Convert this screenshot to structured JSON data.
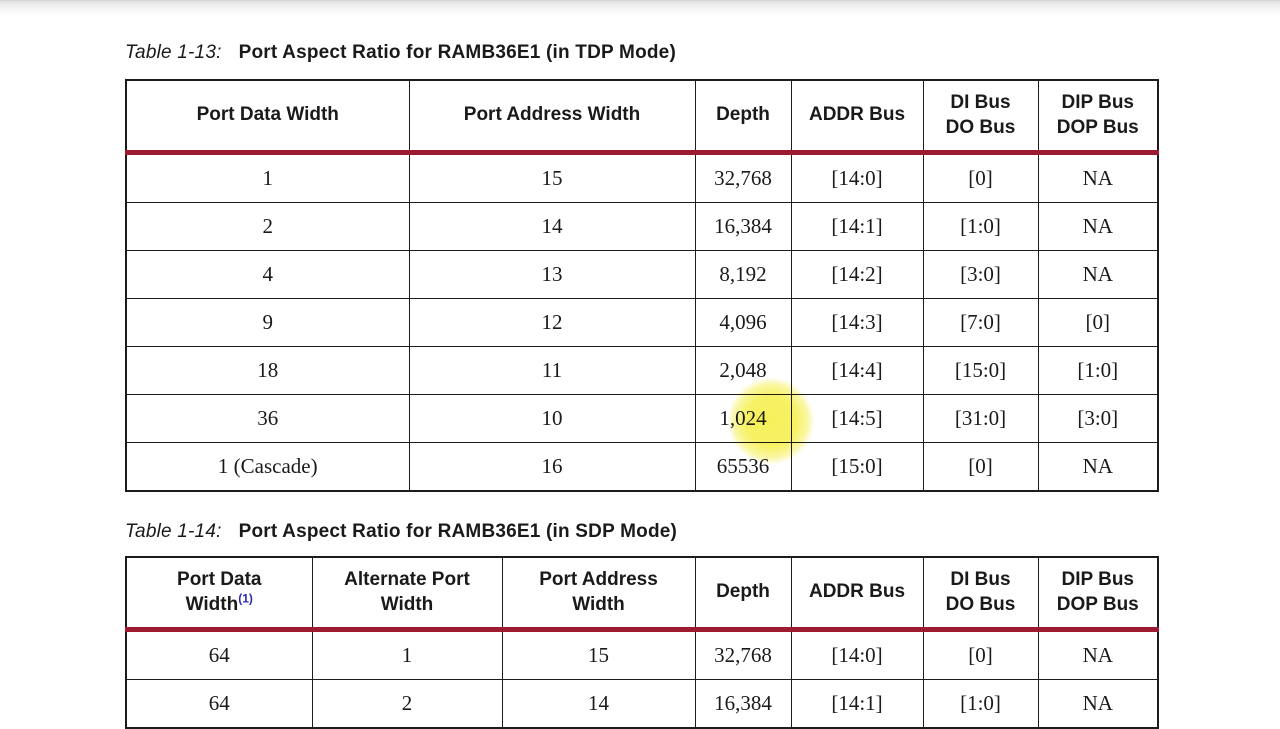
{
  "colors": {
    "accent_red": "#9c1b30",
    "footnote_blue": "#2b2bb4",
    "highlight_yellow": "#f6f058",
    "text": "#1a1a1a"
  },
  "highlight": {
    "shape": "soft-circle",
    "over_cell": "Depth value 1,024 in row Port Data Width 36"
  },
  "tables": [
    {
      "label": "Table 1-13:",
      "title": "Port Aspect Ratio for RAMB36E1 (in TDP Mode)",
      "headers": [
        {
          "text": "Port Data Width"
        },
        {
          "text": "Port Address Width"
        },
        {
          "text": "Depth"
        },
        {
          "text": "ADDR Bus"
        },
        {
          "text": "DI Bus\nDO Bus"
        },
        {
          "text": "DIP Bus\nDOP Bus"
        }
      ],
      "rows": [
        [
          "1",
          "15",
          "32,768",
          "[14:0]",
          "[0]",
          "NA"
        ],
        [
          "2",
          "14",
          "16,384",
          "[14:1]",
          "[1:0]",
          "NA"
        ],
        [
          "4",
          "13",
          "8,192",
          "[14:2]",
          "[3:0]",
          "NA"
        ],
        [
          "9",
          "12",
          "4,096",
          "[14:3]",
          "[7:0]",
          "[0]"
        ],
        [
          "18",
          "11",
          "2,048",
          "[14:4]",
          "[15:0]",
          "[1:0]"
        ],
        [
          "36",
          "10",
          "1,024",
          "[14:5]",
          "[31:0]",
          "[3:0]"
        ],
        [
          "1 (Cascade)",
          "16",
          "65536",
          "[15:0]",
          "[0]",
          "NA"
        ]
      ]
    },
    {
      "label": "Table 1-14:",
      "title": "Port Aspect Ratio for RAMB36E1 (in SDP Mode)",
      "headers": [
        {
          "text": "Port Data\nWidth",
          "sup": "(1)"
        },
        {
          "text": "Alternate Port\nWidth"
        },
        {
          "text": "Port Address\nWidth"
        },
        {
          "text": "Depth"
        },
        {
          "text": "ADDR Bus"
        },
        {
          "text": "DI Bus\nDO Bus"
        },
        {
          "text": "DIP Bus\nDOP Bus"
        }
      ],
      "rows": [
        [
          "64",
          "1",
          "15",
          "32,768",
          "[14:0]",
          "[0]",
          "NA"
        ],
        [
          "64",
          "2",
          "14",
          "16,384",
          "[14:1]",
          "[1:0]",
          "NA"
        ]
      ]
    }
  ]
}
